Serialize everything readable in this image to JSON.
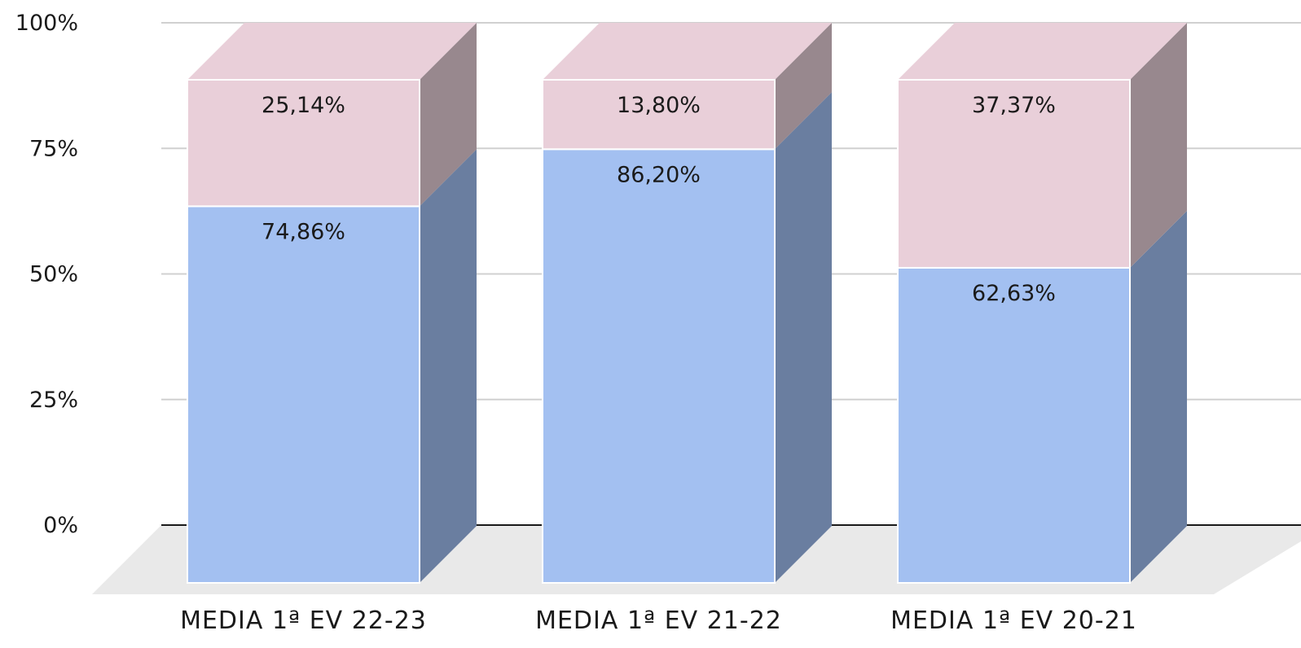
{
  "chart_data": {
    "type": "bar",
    "stacked": true,
    "three_d": true,
    "categories": [
      "MEDIA 1ª EV 22-23",
      "MEDIA 1ª EV 21-22",
      "MEDIA 1ª EV 20-21"
    ],
    "series": [
      {
        "values": [
          74.86,
          86.2,
          62.63
        ],
        "labels": [
          "74,86%",
          "86,20%",
          "62,63%"
        ],
        "color": "#a3c0f1",
        "side_color": "#6a7ea0"
      },
      {
        "values": [
          25.14,
          13.8,
          37.37
        ],
        "labels": [
          "25,14%",
          "13,80%",
          "37,37%"
        ],
        "color": "#e9cfd9",
        "side_color": "#98888e"
      }
    ],
    "y_ticks": [
      "0%",
      "25%",
      "50%",
      "75%",
      "100%"
    ],
    "ylim": [
      0,
      100
    ],
    "grid": true,
    "legend": false
  }
}
